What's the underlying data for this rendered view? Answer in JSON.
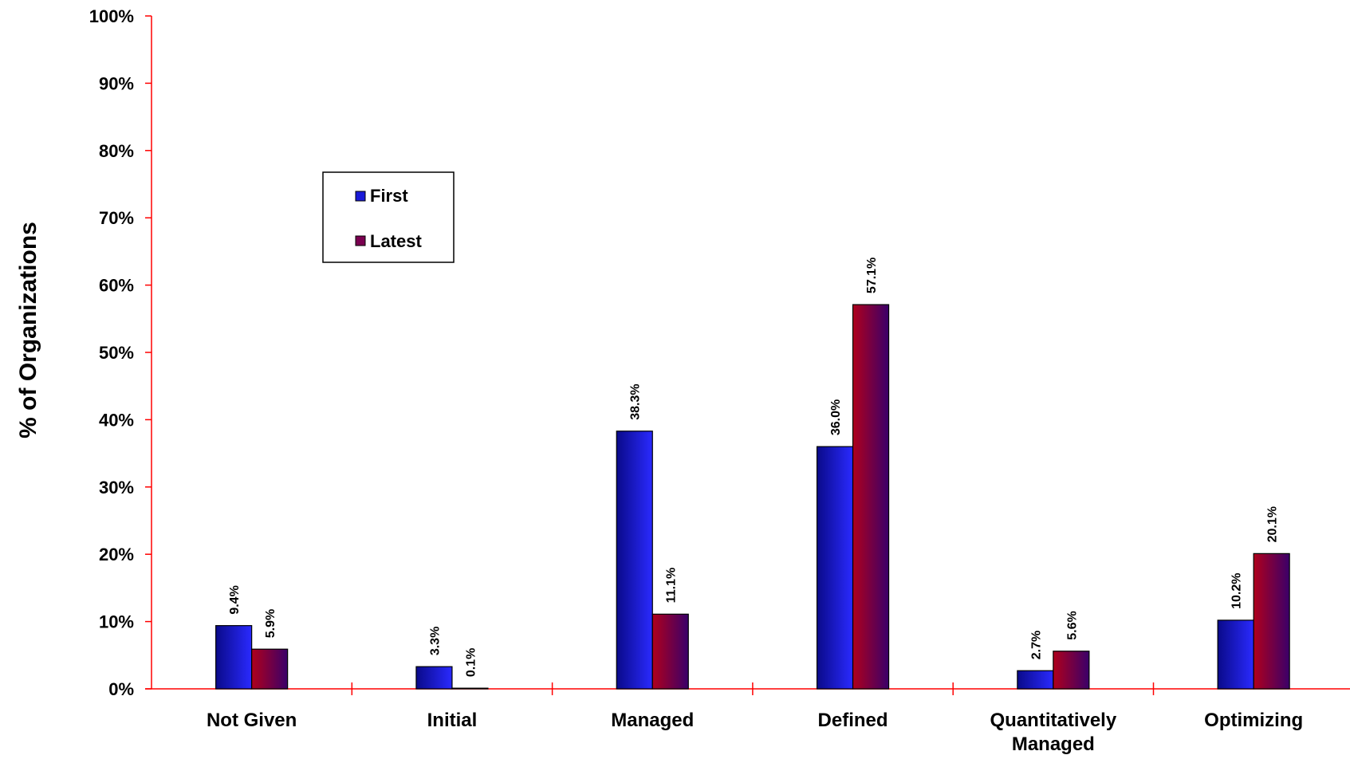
{
  "chart_data": {
    "type": "bar",
    "ylabel": "% of Organizations",
    "xlabel": "",
    "title": "",
    "ylim": [
      0,
      100
    ],
    "y_ticks": [
      0,
      10,
      20,
      30,
      40,
      50,
      60,
      70,
      80,
      90,
      100
    ],
    "y_tick_labels": [
      "0%",
      "10%",
      "20%",
      "30%",
      "40%",
      "50%",
      "60%",
      "70%",
      "80%",
      "90%",
      "100%"
    ],
    "categories": [
      [
        "Not Given"
      ],
      [
        "Initial"
      ],
      [
        "Managed"
      ],
      [
        "Defined"
      ],
      [
        "Quantitatively",
        "Managed"
      ],
      [
        "Optimizing"
      ]
    ],
    "series": [
      {
        "name": "First",
        "values": [
          9.4,
          3.3,
          38.3,
          36.0,
          2.7,
          10.2
        ],
        "labels": [
          "9.4%",
          "3.3%",
          "38.3%",
          "36.0%",
          "2.7%",
          "10.2%"
        ],
        "gradient": [
          "#0a0a8a",
          "#2a2aff"
        ]
      },
      {
        "name": "Latest",
        "values": [
          5.9,
          0.1,
          11.1,
          57.1,
          5.6,
          20.1
        ],
        "labels": [
          "5.9%",
          "0.1%",
          "11.1%",
          "57.1%",
          "5.6%",
          "20.1%"
        ],
        "gradient": [
          "#b0001c",
          "#3a006a"
        ]
      }
    ],
    "legend": {
      "placement": "upper-left inside plot",
      "entries": [
        "First",
        "Latest"
      ]
    },
    "grid": false,
    "axis_color": "#ff0000"
  }
}
